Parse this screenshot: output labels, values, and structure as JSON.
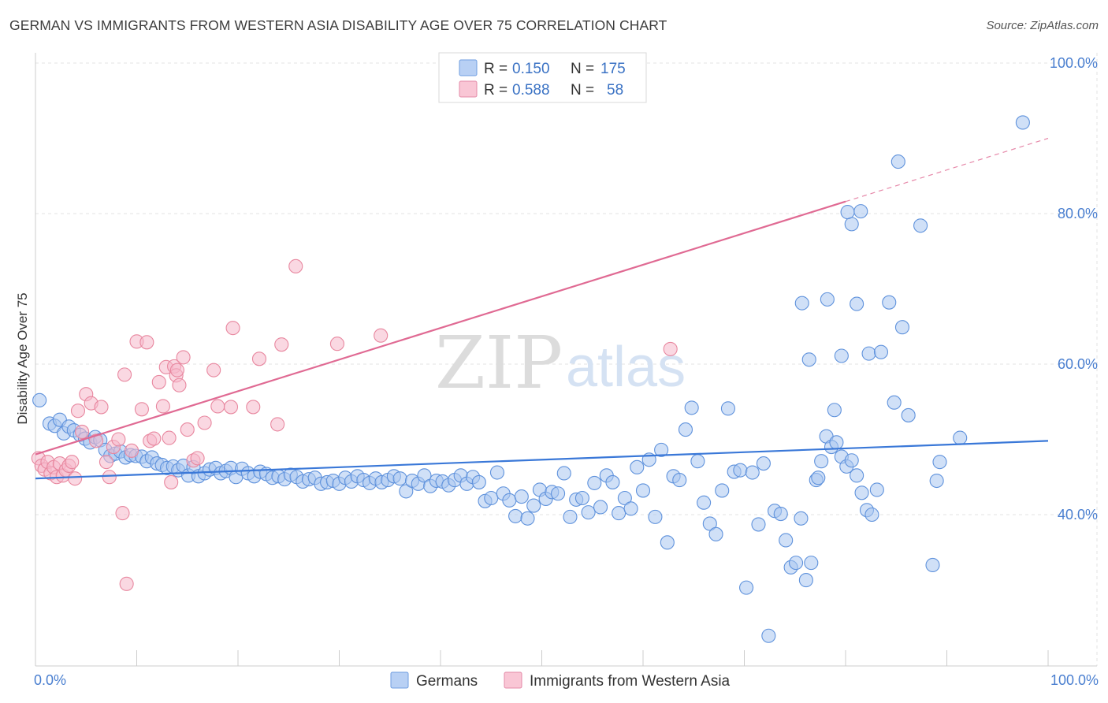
{
  "title": "GERMAN VS IMMIGRANTS FROM WESTERN ASIA DISABILITY AGE OVER 75 CORRELATION CHART",
  "source": "Source: ZipAtlas.com",
  "watermark": {
    "zip": "ZIP",
    "atlas": "atlas"
  },
  "colors": {
    "blue": "#3a78d8",
    "blue_fill": "#a9c7f0",
    "pink": "#e06a93",
    "pink_fill": "#f6b8cb",
    "grid": "#e3e3e3",
    "tick_text": "#4a7fd0"
  },
  "legend": {
    "r_label": "R =",
    "n_label": "N =",
    "series": [
      {
        "name": "Germans",
        "r": "0.150",
        "n": "175"
      },
      {
        "name": "Immigrants from Western Asia",
        "r": "0.588",
        "n": "58"
      }
    ]
  },
  "chart_data": {
    "type": "scatter",
    "title": "GERMAN VS IMMIGRANTS FROM WESTERN ASIA DISABILITY AGE OVER 75 CORRELATION CHART",
    "xlabel": "",
    "ylabel": "Disability Age Over 75",
    "xlim": [
      0,
      100
    ],
    "ylim": [
      20,
      102
    ],
    "x_tick_labels": [
      "0.0%",
      "100.0%"
    ],
    "y_ticks": [
      40,
      60,
      80,
      100
    ],
    "y_tick_labels": [
      "40.0%",
      "60.0%",
      "80.0%",
      "100.0%"
    ],
    "grid": true,
    "legend_position": "top-center",
    "series": [
      {
        "name": "Germans",
        "trend": {
          "x": [
            0,
            100
          ],
          "y": [
            44.8,
            49.8
          ]
        },
        "points": [
          [
            0.4,
            55.2
          ],
          [
            1.4,
            52.1
          ],
          [
            1.9,
            51.8
          ],
          [
            2.4,
            52.6
          ],
          [
            2.8,
            50.8
          ],
          [
            3.3,
            51.7
          ],
          [
            3.8,
            51.2
          ],
          [
            4.4,
            50.6
          ],
          [
            4.9,
            50.1
          ],
          [
            5.4,
            49.6
          ],
          [
            5.9,
            50.3
          ],
          [
            6.4,
            49.9
          ],
          [
            6.9,
            48.6
          ],
          [
            7.4,
            47.8
          ],
          [
            7.9,
            48.1
          ],
          [
            8.4,
            48.4
          ],
          [
            8.9,
            47.6
          ],
          [
            9.4,
            47.9
          ],
          [
            9.9,
            47.8
          ],
          [
            10.5,
            47.7
          ],
          [
            11.0,
            47.1
          ],
          [
            11.5,
            47.6
          ],
          [
            12.0,
            46.8
          ],
          [
            12.5,
            46.6
          ],
          [
            13.0,
            46.2
          ],
          [
            13.6,
            46.4
          ],
          [
            14.1,
            45.9
          ],
          [
            14.6,
            46.5
          ],
          [
            15.1,
            45.2
          ],
          [
            15.6,
            46.3
          ],
          [
            16.1,
            45.1
          ],
          [
            16.7,
            45.5
          ],
          [
            17.2,
            46.0
          ],
          [
            17.8,
            46.2
          ],
          [
            18.3,
            45.5
          ],
          [
            18.8,
            45.8
          ],
          [
            19.3,
            46.2
          ],
          [
            19.8,
            45.0
          ],
          [
            20.4,
            46.1
          ],
          [
            21.0,
            45.5
          ],
          [
            21.6,
            45.1
          ],
          [
            22.2,
            45.7
          ],
          [
            22.8,
            45.4
          ],
          [
            23.4,
            44.9
          ],
          [
            24.0,
            45.1
          ],
          [
            24.6,
            44.7
          ],
          [
            25.2,
            45.3
          ],
          [
            25.8,
            45.0
          ],
          [
            26.4,
            44.4
          ],
          [
            27.0,
            44.7
          ],
          [
            27.6,
            44.9
          ],
          [
            28.2,
            44.1
          ],
          [
            28.8,
            44.3
          ],
          [
            29.4,
            44.5
          ],
          [
            30.0,
            44.1
          ],
          [
            30.6,
            44.9
          ],
          [
            31.2,
            44.4
          ],
          [
            31.8,
            45.1
          ],
          [
            32.4,
            44.6
          ],
          [
            33.0,
            44.2
          ],
          [
            33.6,
            44.8
          ],
          [
            34.2,
            44.3
          ],
          [
            34.8,
            44.6
          ],
          [
            35.4,
            45.1
          ],
          [
            36.0,
            44.8
          ],
          [
            36.6,
            43.1
          ],
          [
            37.2,
            44.5
          ],
          [
            37.8,
            44.1
          ],
          [
            38.4,
            45.2
          ],
          [
            39.0,
            43.8
          ],
          [
            39.6,
            44.5
          ],
          [
            40.2,
            44.4
          ],
          [
            40.8,
            43.9
          ],
          [
            41.4,
            44.6
          ],
          [
            42.0,
            45.2
          ],
          [
            42.6,
            44.1
          ],
          [
            43.2,
            45.0
          ],
          [
            43.8,
            44.3
          ],
          [
            44.4,
            41.8
          ],
          [
            45.0,
            42.2
          ],
          [
            45.6,
            45.6
          ],
          [
            46.2,
            42.8
          ],
          [
            46.8,
            41.9
          ],
          [
            47.4,
            39.8
          ],
          [
            48.0,
            42.4
          ],
          [
            48.6,
            39.5
          ],
          [
            49.2,
            41.2
          ],
          [
            49.8,
            43.3
          ],
          [
            50.4,
            42.1
          ],
          [
            51.0,
            43.0
          ],
          [
            51.6,
            42.8
          ],
          [
            52.2,
            45.5
          ],
          [
            52.8,
            39.7
          ],
          [
            53.4,
            42.0
          ],
          [
            54.0,
            42.2
          ],
          [
            54.6,
            40.3
          ],
          [
            55.2,
            44.2
          ],
          [
            55.8,
            41.0
          ],
          [
            56.4,
            45.2
          ],
          [
            57.0,
            44.3
          ],
          [
            57.6,
            40.2
          ],
          [
            58.2,
            42.2
          ],
          [
            58.8,
            40.8
          ],
          [
            59.4,
            46.3
          ],
          [
            60.0,
            43.2
          ],
          [
            60.6,
            47.3
          ],
          [
            61.2,
            39.7
          ],
          [
            61.8,
            48.6
          ],
          [
            62.4,
            36.3
          ],
          [
            63.0,
            45.1
          ],
          [
            63.6,
            44.6
          ],
          [
            64.2,
            51.3
          ],
          [
            64.8,
            54.2
          ],
          [
            65.4,
            47.1
          ],
          [
            66.0,
            41.6
          ],
          [
            66.6,
            38.8
          ],
          [
            67.2,
            37.4
          ],
          [
            67.8,
            43.2
          ],
          [
            68.4,
            54.1
          ],
          [
            69.0,
            45.7
          ],
          [
            69.6,
            45.9
          ],
          [
            70.2,
            30.3
          ],
          [
            70.8,
            45.6
          ],
          [
            71.4,
            38.7
          ],
          [
            71.9,
            46.8
          ],
          [
            72.4,
            23.9
          ],
          [
            73.0,
            40.5
          ],
          [
            73.6,
            40.1
          ],
          [
            74.1,
            36.6
          ],
          [
            74.6,
            33.0
          ],
          [
            75.1,
            33.6
          ],
          [
            75.6,
            39.5
          ],
          [
            76.1,
            31.3
          ],
          [
            76.6,
            33.6
          ],
          [
            77.1,
            44.6
          ],
          [
            77.6,
            47.1
          ],
          [
            78.1,
            50.4
          ],
          [
            78.6,
            49.0
          ],
          [
            79.1,
            49.6
          ],
          [
            79.6,
            47.7
          ],
          [
            80.1,
            46.4
          ],
          [
            80.6,
            47.2
          ],
          [
            81.1,
            45.2
          ],
          [
            81.6,
            42.9
          ],
          [
            82.1,
            40.6
          ],
          [
            82.6,
            40.0
          ],
          [
            83.1,
            43.3
          ],
          [
            75.7,
            68.1
          ],
          [
            76.4,
            60.6
          ],
          [
            77.3,
            44.9
          ],
          [
            78.2,
            68.6
          ],
          [
            78.9,
            53.9
          ],
          [
            79.6,
            61.1
          ],
          [
            80.6,
            78.6
          ],
          [
            81.1,
            68.0
          ],
          [
            82.3,
            61.4
          ],
          [
            83.5,
            61.6
          ],
          [
            84.3,
            68.2
          ],
          [
            85.2,
            86.9
          ],
          [
            85.6,
            64.9
          ],
          [
            86.2,
            53.2
          ],
          [
            87.4,
            78.4
          ],
          [
            88.6,
            33.3
          ],
          [
            89.0,
            44.5
          ],
          [
            89.3,
            47.0
          ],
          [
            91.3,
            50.2
          ],
          [
            84.8,
            54.9
          ],
          [
            80.2,
            80.2
          ],
          [
            81.5,
            80.3
          ],
          [
            97.5,
            92.1
          ]
        ]
      },
      {
        "name": "Immigrants from Western Asia",
        "trend": {
          "x": [
            0,
            80
          ],
          "y": [
            48.0,
            81.6
          ]
        },
        "trend_extension": {
          "x": [
            80,
            100
          ],
          "y": [
            81.6,
            90.0
          ]
        },
        "points": [
          [
            0.3,
            47.5
          ],
          [
            0.6,
            46.5
          ],
          [
            0.9,
            46.0
          ],
          [
            1.2,
            47.0
          ],
          [
            1.5,
            45.5
          ],
          [
            1.8,
            46.3
          ],
          [
            2.1,
            45.0
          ],
          [
            2.4,
            46.8
          ],
          [
            2.7,
            45.2
          ],
          [
            3.0,
            45.9
          ],
          [
            3.3,
            46.5
          ],
          [
            3.6,
            47.0
          ],
          [
            3.9,
            44.8
          ],
          [
            4.2,
            53.8
          ],
          [
            4.6,
            51.0
          ],
          [
            5.0,
            56.0
          ],
          [
            5.5,
            54.8
          ],
          [
            6.0,
            49.8
          ],
          [
            6.5,
            54.3
          ],
          [
            7.0,
            47.0
          ],
          [
            7.3,
            45.0
          ],
          [
            7.7,
            49.0
          ],
          [
            8.2,
            50.0
          ],
          [
            8.6,
            40.2
          ],
          [
            8.8,
            58.6
          ],
          [
            9.0,
            30.8
          ],
          [
            9.5,
            48.5
          ],
          [
            10.0,
            63.0
          ],
          [
            10.5,
            54.0
          ],
          [
            11.0,
            62.9
          ],
          [
            11.3,
            49.8
          ],
          [
            11.7,
            50.1
          ],
          [
            12.2,
            57.6
          ],
          [
            12.6,
            54.4
          ],
          [
            12.9,
            59.6
          ],
          [
            13.2,
            50.2
          ],
          [
            13.4,
            44.3
          ],
          [
            13.7,
            59.7
          ],
          [
            13.9,
            58.5
          ],
          [
            14.0,
            59.2
          ],
          [
            14.2,
            57.2
          ],
          [
            14.6,
            60.9
          ],
          [
            15.0,
            51.3
          ],
          [
            15.6,
            47.2
          ],
          [
            16.0,
            47.5
          ],
          [
            16.7,
            52.2
          ],
          [
            17.6,
            59.2
          ],
          [
            18.0,
            54.4
          ],
          [
            19.3,
            54.3
          ],
          [
            19.5,
            64.8
          ],
          [
            21.5,
            54.3
          ],
          [
            22.1,
            60.7
          ],
          [
            23.9,
            52.0
          ],
          [
            24.3,
            62.6
          ],
          [
            25.7,
            73.0
          ],
          [
            29.8,
            62.7
          ],
          [
            34.1,
            63.8
          ],
          [
            62.7,
            62.0
          ]
        ]
      }
    ]
  }
}
